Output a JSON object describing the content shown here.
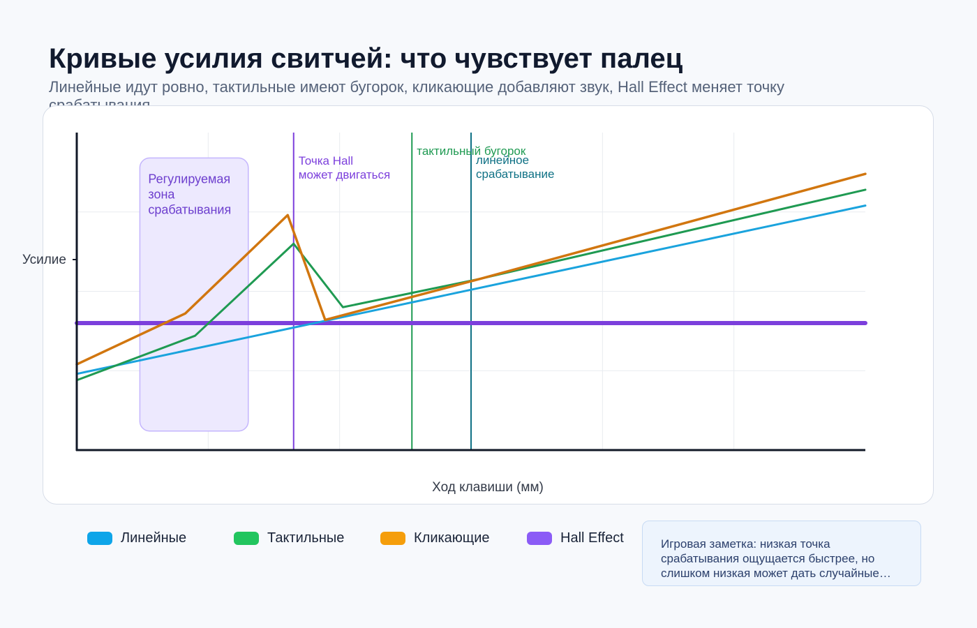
{
  "header": {
    "title": "Кривые усилия свитчей: что чувствует палец",
    "subtitle": "Линейные идут ровно, тактильные имеют бугорок, кликающие добавляют звук, Hall Effect меняет точку срабатывания"
  },
  "chart_data": {
    "type": "line",
    "title": "Кривые усилия свитчей: что чувствует палец",
    "subtitle": "Линейные идут ровно, тактильные имеют бугорок, кликающие добавляют звук, Hall Effect меняет точку срабатывания",
    "xlabel": "Ход клавиши (мм)",
    "ylabel": "Усилие",
    "xlim": [
      0,
      4
    ],
    "ylim": [
      0,
      100
    ],
    "grid": true,
    "legend_position": "bottom",
    "series": [
      {
        "name": "Линейные",
        "color": "#0ea5e9",
        "stroke": "#1aa3dd",
        "width": 3,
        "points": [
          [
            0,
            24
          ],
          [
            4,
            77
          ]
        ]
      },
      {
        "name": "Тактильные",
        "color": "#22c55e",
        "stroke": "#1f9a52",
        "width": 3,
        "points": [
          [
            0,
            22
          ],
          [
            0.6,
            36
          ],
          [
            1.1,
            65
          ],
          [
            1.35,
            45
          ],
          [
            2.05,
            54
          ],
          [
            4,
            82
          ]
        ]
      },
      {
        "name": "Кликающие",
        "color": "#f59e0b",
        "stroke": "#d1760f",
        "width": 3.5,
        "points": [
          [
            0,
            27
          ],
          [
            0.55,
            43
          ],
          [
            1.07,
            74
          ],
          [
            1.26,
            41
          ],
          [
            2.05,
            54
          ],
          [
            4,
            87
          ]
        ]
      },
      {
        "name": "Hall Effect",
        "color": "#8b5cf6",
        "stroke": "#7c3fdc",
        "width": 6,
        "points": [
          [
            0,
            40
          ],
          [
            4,
            40
          ]
        ]
      }
    ],
    "zones": [
      {
        "label": "Регулируемая зона срабатывания",
        "x0": 0.32,
        "x1": 0.87,
        "y0": 6,
        "y1": 92
      }
    ],
    "annotations": [
      {
        "text": "Точка Hall может двигаться",
        "x": 1.1,
        "color": "#7c3fdc"
      },
      {
        "text": "тактильный бугорок",
        "x": 1.7,
        "color": "#1f9a52"
      },
      {
        "text": "линейное срабатывание",
        "x": 2.0,
        "color": "#0f7185"
      }
    ]
  },
  "note": {
    "text": "Игровая заметка: низкая точка срабатывания ощущается быстрее, но слишком низкая может дать случайные нажатия"
  }
}
